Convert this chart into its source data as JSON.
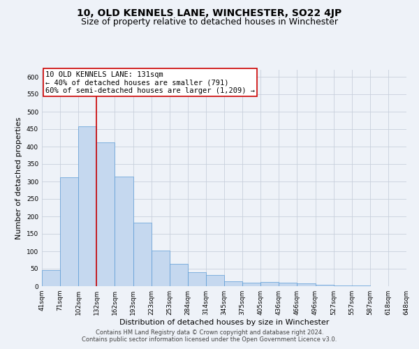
{
  "title": "10, OLD KENNELS LANE, WINCHESTER, SO22 4JP",
  "subtitle": "Size of property relative to detached houses in Winchester",
  "xlabel": "Distribution of detached houses by size in Winchester",
  "ylabel": "Number of detached properties",
  "bar_values": [
    47,
    312,
    459,
    412,
    314,
    183,
    102,
    65,
    40,
    32,
    15,
    11,
    12,
    10,
    8,
    5,
    3,
    2,
    1,
    1
  ],
  "bin_labels": [
    "41sqm",
    "71sqm",
    "102sqm",
    "132sqm",
    "162sqm",
    "193sqm",
    "223sqm",
    "253sqm",
    "284sqm",
    "314sqm",
    "345sqm",
    "375sqm",
    "405sqm",
    "436sqm",
    "466sqm",
    "496sqm",
    "527sqm",
    "557sqm",
    "587sqm",
    "618sqm",
    "648sqm"
  ],
  "bar_color": "#c5d8ef",
  "bar_edge_color": "#5b9bd5",
  "annotation_box_color": "#ffffff",
  "annotation_border_color": "#cc0000",
  "red_line_x": 3,
  "annotation_line1": "10 OLD KENNELS LANE: 131sqm",
  "annotation_line2": "← 40% of detached houses are smaller (791)",
  "annotation_line3": "60% of semi-detached houses are larger (1,209) →",
  "ylim": [
    0,
    620
  ],
  "yticks": [
    0,
    50,
    100,
    150,
    200,
    250,
    300,
    350,
    400,
    450,
    500,
    550,
    600
  ],
  "footer_line1": "Contains HM Land Registry data © Crown copyright and database right 2024.",
  "footer_line2": "Contains public sector information licensed under the Open Government Licence v3.0.",
  "background_color": "#eef2f8",
  "grid_color": "#c8d0dc",
  "title_fontsize": 10,
  "subtitle_fontsize": 9,
  "axis_label_fontsize": 8,
  "tick_fontsize": 6.5,
  "annotation_fontsize": 7.5,
  "footer_fontsize": 6
}
